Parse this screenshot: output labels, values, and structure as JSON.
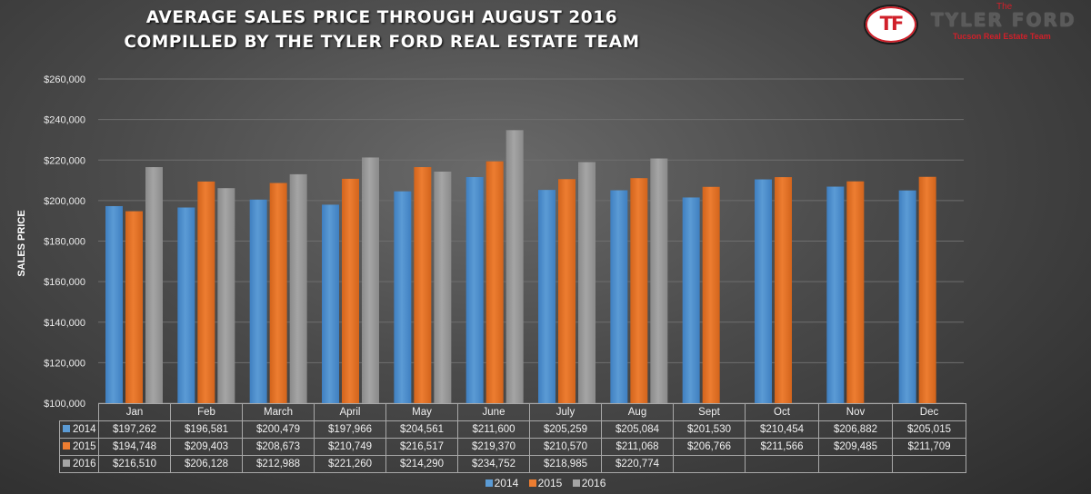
{
  "header": {
    "title_line1": "AVERAGE SALES PRICE THROUGH AUGUST 2016",
    "title_line2": "COMPILLED BY THE TYLER FORD REAL ESTATE TEAM"
  },
  "logo": {
    "monogram": "TF",
    "the": "The",
    "name": "TYLER FORD",
    "tagline": "Tucson Real Estate Team"
  },
  "colors": {
    "2014": "#5b9bd5",
    "2015": "#ed7d31",
    "2016": "#a5a5a5"
  },
  "chart_data": {
    "type": "bar",
    "ylabel": "SALES PRICE",
    "xlabel": "",
    "ylim": [
      100000,
      260000
    ],
    "yticks": [
      {
        "value": 100000,
        "label": "$100,000"
      },
      {
        "value": 120000,
        "label": "$120,000"
      },
      {
        "value": 140000,
        "label": "$140,000"
      },
      {
        "value": 160000,
        "label": "$160,000"
      },
      {
        "value": 180000,
        "label": "$180,000"
      },
      {
        "value": 200000,
        "label": "$200,000"
      },
      {
        "value": 220000,
        "label": "$220,000"
      },
      {
        "value": 240000,
        "label": "$240,000"
      },
      {
        "value": 260000,
        "label": "$260,000"
      }
    ],
    "grid": true,
    "legend_position": "bottom",
    "categories": [
      "Jan",
      "Feb",
      "March",
      "April",
      "May",
      "June",
      "July",
      "Aug",
      "Sept",
      "Oct",
      "Nov",
      "Dec"
    ],
    "series": [
      {
        "name": "2014",
        "values": [
          197262,
          196581,
          200479,
          197966,
          204561,
          211600,
          205259,
          205084,
          201530,
          210454,
          206882,
          205015
        ],
        "labels": [
          "$197,262",
          "$196,581",
          "$200,479",
          "$197,966",
          "$204,561",
          "$211,600",
          "$205,259",
          "$205,084",
          "$201,530",
          "$210,454",
          "$206,882",
          "$205,015"
        ]
      },
      {
        "name": "2015",
        "values": [
          194748,
          209403,
          208673,
          210749,
          216517,
          219370,
          210570,
          211068,
          206766,
          211566,
          209485,
          211709
        ],
        "labels": [
          "$194,748",
          "$209,403",
          "$208,673",
          "$210,749",
          "$216,517",
          "$219,370",
          "$210,570",
          "$211,068",
          "$206,766",
          "$211,566",
          "$209,485",
          "$211,709"
        ]
      },
      {
        "name": "2016",
        "values": [
          216510,
          206128,
          212988,
          221260,
          214290,
          234752,
          218985,
          220774,
          null,
          null,
          null,
          null
        ],
        "labels": [
          "$216,510",
          "$206,128",
          "$212,988",
          "$221,260",
          "$214,290",
          "$234,752",
          "$218,985",
          "$220,774",
          "",
          "",
          "",
          ""
        ]
      }
    ]
  }
}
